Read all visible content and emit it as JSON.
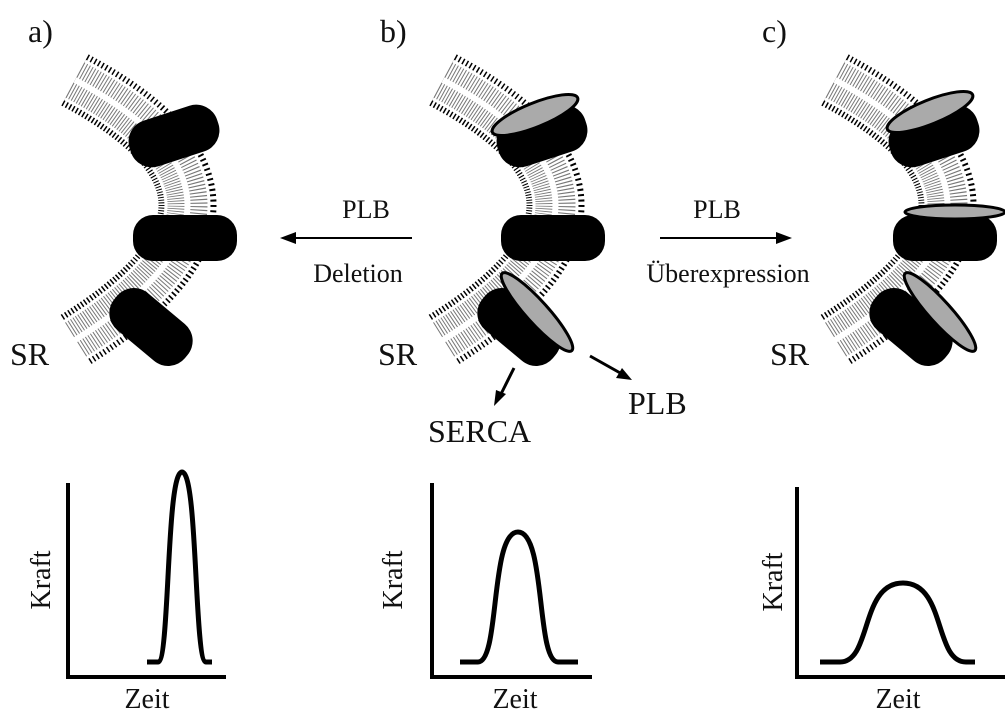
{
  "panels": [
    {
      "label": "a)",
      "membrane_label": "SR",
      "plot": {
        "y_label": "Kraft",
        "x_label": "Zeit"
      }
    },
    {
      "label": "b)",
      "membrane_label": "SR",
      "plot": {
        "y_label": "Kraft",
        "x_label": "Zeit"
      }
    },
    {
      "label": "c)",
      "membrane_label": "SR",
      "plot": {
        "y_label": "Kraft",
        "x_label": "Zeit"
      }
    }
  ],
  "arrows": [
    {
      "top": "PLB",
      "bottom": "Deletion"
    },
    {
      "top": "PLB",
      "bottom": "Überexpression"
    }
  ],
  "callouts": {
    "serca": "SERCA",
    "plb": "PLB"
  }
}
